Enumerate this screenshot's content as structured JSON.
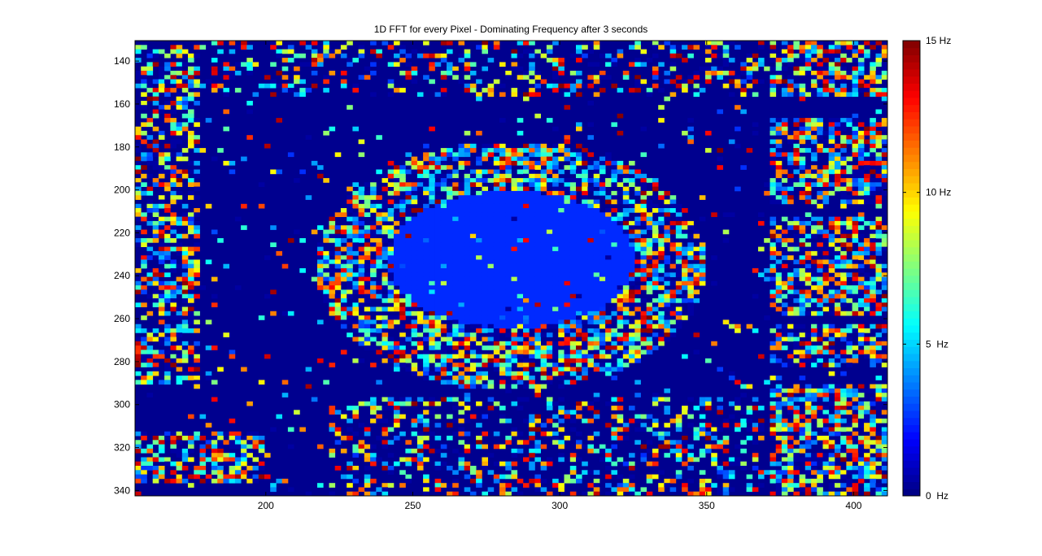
{
  "chart_data": {
    "type": "heatmap",
    "title": "1D FFT for every Pixel - Dominating Frequency after 3 seconds",
    "xlabel": "",
    "ylabel": "",
    "xlim": [
      155.5,
      411.5
    ],
    "ylim": [
      130.5,
      342.5
    ],
    "y_direction": "reversed",
    "x_ticks": [
      "200",
      "250",
      "300",
      "350",
      "400"
    ],
    "x_tick_values": [
      200,
      250,
      300,
      350,
      400
    ],
    "y_ticks": [
      "140",
      "160",
      "180",
      "200",
      "220",
      "240",
      "260",
      "280",
      "300",
      "320",
      "340"
    ],
    "y_tick_values": [
      140,
      160,
      180,
      200,
      220,
      240,
      260,
      280,
      300,
      320,
      340
    ],
    "colorbar": {
      "colormap": "jet",
      "range": [
        0,
        15
      ],
      "unit": "Hz",
      "tick_labels": [
        "0  Hz",
        "5  Hz",
        "10 Hz",
        "15 Hz"
      ],
      "tick_values": [
        0,
        5,
        10,
        15
      ]
    },
    "background_value": 0,
    "regions": [
      {
        "label": "central pond",
        "value": 2.5,
        "center": [
          283,
          232
        ],
        "radius": [
          42,
          32
        ]
      },
      {
        "label": "noisy ring around pond",
        "value": "mixed 0-15",
        "center": [
          283,
          235
        ],
        "radius": [
          66,
          58
        ]
      },
      {
        "label": "upper-left block",
        "value": "mixed 0-15",
        "x": [
          158,
          178
        ],
        "y": [
          130,
          160
        ]
      },
      {
        "label": "right building blocks",
        "value": "mixed 0-15",
        "x": [
          370,
          411
        ],
        "y": [
          130,
          342
        ]
      },
      {
        "label": "bottom-left block",
        "value": "mixed 0-15",
        "x": [
          158,
          200
        ],
        "y": [
          311,
          336
        ]
      }
    ]
  }
}
